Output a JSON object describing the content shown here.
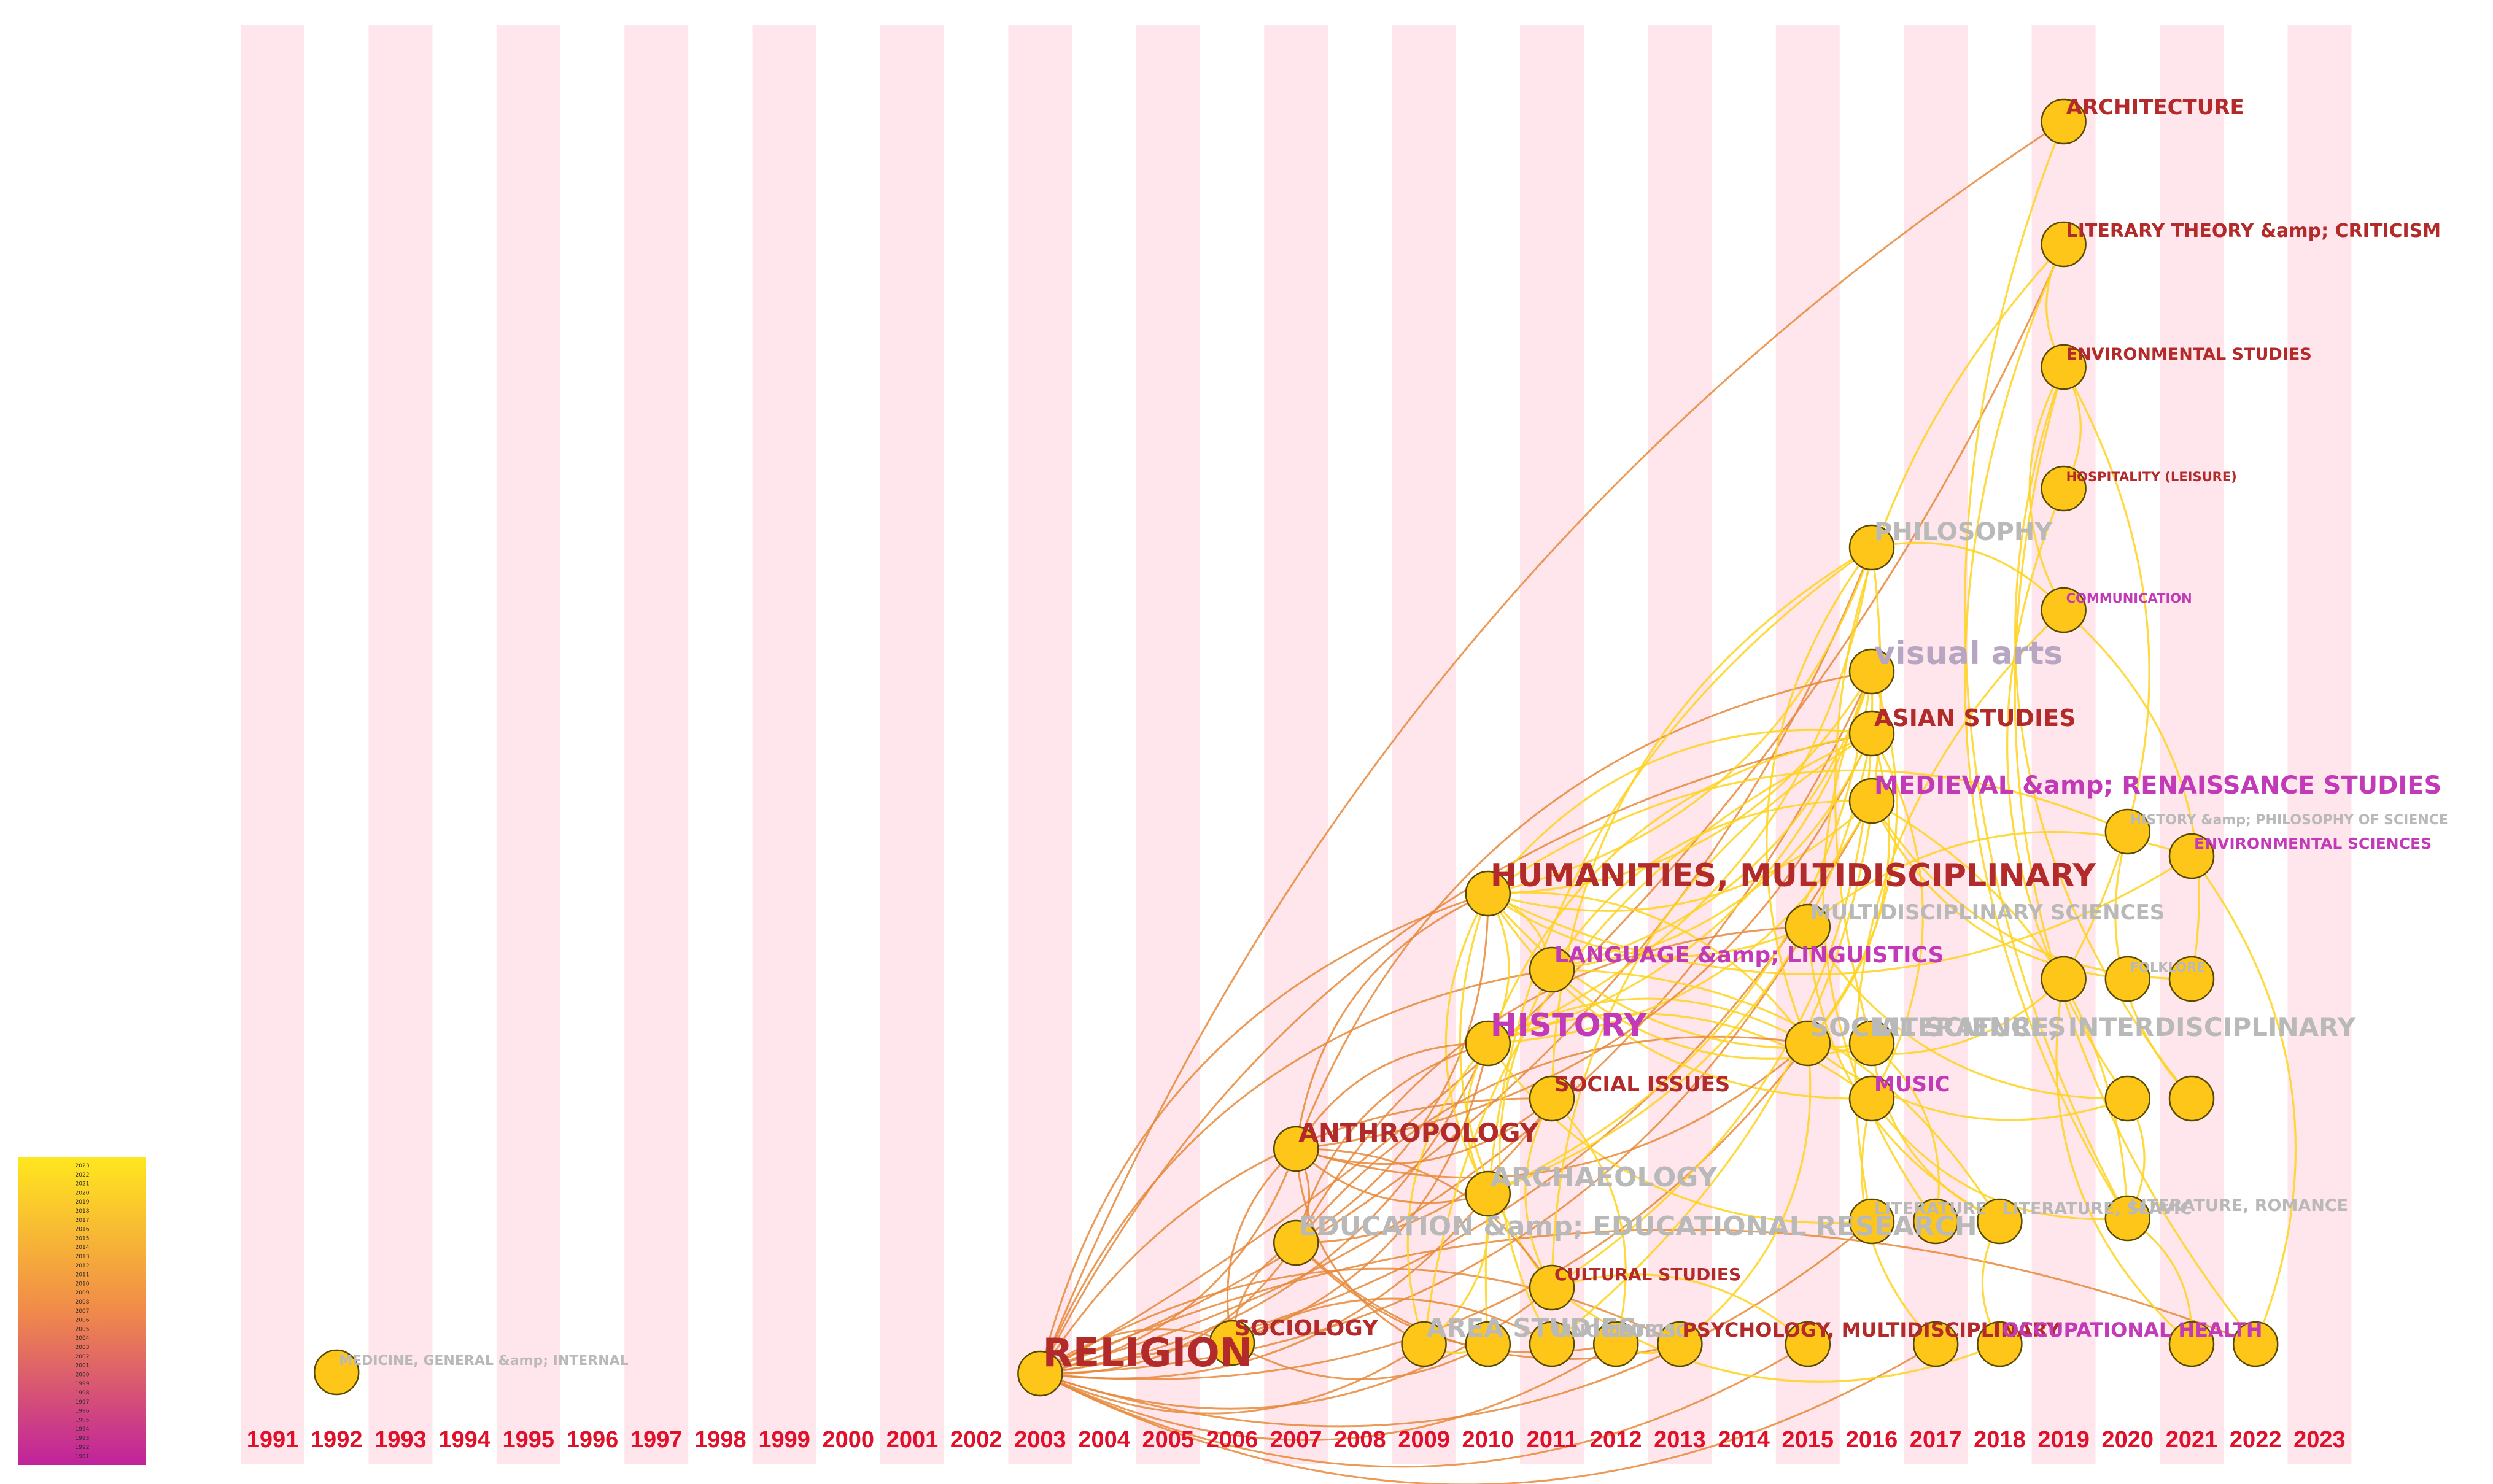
{
  "colors": {
    "stripe": "#ffe6ec",
    "node_fill": "#ffc61a",
    "node_stroke": "#5a4a00",
    "edge_recent": "#ffd21e",
    "edge_old": "#e8883a",
    "label_red": "#b22a2a",
    "label_magenta": "#c23ab8",
    "label_gray": "#b9b9b9",
    "label_mauve": "#b7a6c2",
    "year_label": "#e0102a",
    "legend_top": "#ffe71e",
    "legend_mid": "#f08a4a",
    "legend_bottom": "#c0229c"
  },
  "years": [
    "1991",
    "1992",
    "1993",
    "1994",
    "1995",
    "1996",
    "1997",
    "1998",
    "1999",
    "2000",
    "2001",
    "2002",
    "2003",
    "2004",
    "2005",
    "2006",
    "2007",
    "2008",
    "2009",
    "2010",
    "2011",
    "2012",
    "2013",
    "2014",
    "2015",
    "2016",
    "2017",
    "2018",
    "2019",
    "2020",
    "2021",
    "2022",
    "2023"
  ],
  "legend": {
    "labels": [
      "2023",
      "2022",
      "2021",
      "2020",
      "2019",
      "2018",
      "2017",
      "2016",
      "2015",
      "2014",
      "2013",
      "2012",
      "2011",
      "2010",
      "2009",
      "2008",
      "2007",
      "2006",
      "2005",
      "2004",
      "2003",
      "2002",
      "2001",
      "2000",
      "1999",
      "1998",
      "1997",
      "1996",
      "1995",
      "1994",
      "1993",
      "1992",
      "1991"
    ]
  },
  "nodes": [
    {
      "id": "architecture",
      "year": 2019,
      "label": "ARCHITECTURE",
      "color": "red",
      "size": 36
    },
    {
      "id": "literary-theory",
      "year": 2019,
      "label": "LITERARY THEORY &amp; CRITICISM",
      "color": "red",
      "size": 32
    },
    {
      "id": "environmental-studies",
      "year": 2019,
      "label": "ENVIRONMENTAL STUDIES",
      "color": "red",
      "size": 28
    },
    {
      "id": "hospitality",
      "year": 2019,
      "label": "HOSPITALITY (LEISURE)",
      "color": "red",
      "size": 22
    },
    {
      "id": "philosophy",
      "year": 2016,
      "label": "PHILOSOPHY",
      "color": "gray",
      "size": 42
    },
    {
      "id": "communication",
      "year": 2019,
      "label": "COMMUNICATION",
      "color": "magenta",
      "size": 22
    },
    {
      "id": "visual-arts",
      "year": 2016,
      "label": "visual arts",
      "color": "mauve",
      "size": 56
    },
    {
      "id": "asian-studies",
      "year": 2016,
      "label": "ASIAN STUDIES",
      "color": "red",
      "size": 40
    },
    {
      "id": "medieval",
      "year": 2016,
      "label": "MEDIEVAL &amp; RENAISSANCE STUDIES",
      "color": "magenta",
      "size": 42
    },
    {
      "id": "history-philosophy-science",
      "year": 2020,
      "label": "HISTORY &amp; PHILOSOPHY OF SCIENCE",
      "color": "gray",
      "size": 24
    },
    {
      "id": "environmental-sciences",
      "year": 2021,
      "label": "ENVIRONMENTAL SCIENCES",
      "color": "magenta",
      "size": 26
    },
    {
      "id": "humanities",
      "year": 2010,
      "label": "HUMANITIES, MULTIDISCIPLINARY",
      "color": "red",
      "size": 56
    },
    {
      "id": "multidisciplinary-sciences",
      "year": 2015,
      "label": "MULTIDISCIPLINARY SCIENCES",
      "color": "gray",
      "size": 36
    },
    {
      "id": "language-linguistics",
      "year": 2011,
      "label": "LANGUAGE &amp; LINGUISTICS",
      "color": "magenta",
      "size": 38
    },
    {
      "id": "n-2019-a",
      "year": 2019,
      "label": "",
      "color": "gray",
      "size": 0
    },
    {
      "id": "folklore",
      "year": 2020,
      "label": "FOLKLORE",
      "color": "gray",
      "size": 22
    },
    {
      "id": "n-2021-a",
      "year": 2021,
      "label": "",
      "color": "gray",
      "size": 0
    },
    {
      "id": "history",
      "year": 2010,
      "label": "HISTORY",
      "color": "magenta",
      "size": 56
    },
    {
      "id": "social-sciences",
      "year": 2015,
      "label": "SOCIAL SCIENCES",
      "color": "gray",
      "size": 44
    },
    {
      "id": "literature-interdisciplinary",
      "year": 2016,
      "label": "LITERATURE, INTERDISCIPLINARY",
      "color": "gray",
      "size": 44
    },
    {
      "id": "social-issues",
      "year": 2011,
      "label": "SOCIAL ISSUES",
      "color": "red",
      "size": 36
    },
    {
      "id": "music",
      "year": 2016,
      "label": "MUSIC",
      "color": "magenta",
      "size": 36
    },
    {
      "id": "n-2020-b",
      "year": 2020,
      "label": "",
      "color": "gray",
      "size": 0
    },
    {
      "id": "n-2021-b",
      "year": 2021,
      "label": "",
      "color": "gray",
      "size": 0
    },
    {
      "id": "anthropology",
      "year": 2007,
      "label": "ANTHROPOLOGY",
      "color": "red",
      "size": 44
    },
    {
      "id": "archaeology",
      "year": 2010,
      "label": "ARCHAEOLOGY",
      "color": "gray",
      "size": 46
    },
    {
      "id": "education",
      "year": 2007,
      "label": "EDUCATION &amp; EDUCATIONAL RESEARCH",
      "color": "gray",
      "size": 46
    },
    {
      "id": "literature",
      "year": 2016,
      "label": "LITERATURE",
      "color": "gray",
      "size": 28
    },
    {
      "id": "n-2017-c",
      "year": 2017,
      "label": "",
      "color": "gray",
      "size": 0
    },
    {
      "id": "literature-slavic",
      "year": 2018,
      "label": "LITERATURE, SLAVIC",
      "color": "gray",
      "size": 28
    },
    {
      "id": "literature-romance",
      "year": 2020,
      "label": "LITERATURE, ROMANCE",
      "color": "gray",
      "size": 28
    },
    {
      "id": "cultural-studies",
      "year": 2011,
      "label": "CULTURAL STUDIES",
      "color": "red",
      "size": 30
    },
    {
      "id": "sociology",
      "year": 2006,
      "label": "SOCIOLOGY",
      "color": "red",
      "size": 38
    },
    {
      "id": "area-studies",
      "year": 2009,
      "label": "AREA STUDIES",
      "color": "gray",
      "size": 44
    },
    {
      "id": "n-2010-d",
      "year": 2010,
      "label": "",
      "color": "gray",
      "size": 0
    },
    {
      "id": "linguistics",
      "year": 2011,
      "label": "LINGUISTICS",
      "color": "gray",
      "size": 30
    },
    {
      "id": "public",
      "year": 2012,
      "label": "PUBLIC",
      "color": "gray",
      "size": 30
    },
    {
      "id": "psychology-multidisciplinary",
      "year": 2013,
      "label": "PSYCHOLOGY, MULTIDISCIPLINARY",
      "color": "red",
      "size": 34
    },
    {
      "id": "n-2015-d",
      "year": 2015,
      "label": "",
      "color": "gray",
      "size": 0
    },
    {
      "id": "n-2017-d",
      "year": 2017,
      "label": "",
      "color": "gray",
      "size": 0
    },
    {
      "id": "occupational-health",
      "year": 2018,
      "label": "OCCUPATIONAL HEALTH",
      "color": "magenta",
      "size": 34
    },
    {
      "id": "n-2021-d",
      "year": 2021,
      "label": "",
      "color": "gray",
      "size": 0
    },
    {
      "id": "n-2022-d",
      "year": 2022,
      "label": "",
      "color": "gray",
      "size": 0
    },
    {
      "id": "medicine-general",
      "year": 1992,
      "label": "MEDICINE, GENERAL &amp; INTERNAL",
      "color": "gray",
      "size": 24
    },
    {
      "id": "religion",
      "year": 2003,
      "label": "RELIGION",
      "color": "red",
      "size": 64
    }
  ],
  "edges": [
    [
      "religion",
      "architecture"
    ],
    [
      "religion",
      "literary-theory"
    ],
    [
      "religion",
      "philosophy"
    ],
    [
      "religion",
      "humanities"
    ],
    [
      "religion",
      "history"
    ],
    [
      "religion",
      "anthropology"
    ],
    [
      "religion",
      "sociology"
    ],
    [
      "religion",
      "education"
    ],
    [
      "religion",
      "archaeology"
    ],
    [
      "religion",
      "asian-studies"
    ],
    [
      "religion",
      "visual-arts"
    ],
    [
      "religion",
      "social-sciences"
    ],
    [
      "religion",
      "language-linguistics"
    ],
    [
      "religion",
      "cultural-studies"
    ],
    [
      "religion",
      "area-studies"
    ],
    [
      "religion",
      "psychology-multidisciplinary"
    ],
    [
      "religion",
      "multidisciplinary-sciences"
    ],
    [
      "religion",
      "medieval"
    ],
    [
      "religion",
      "n-2022-d"
    ],
    [
      "religion",
      "n-2017-d"
    ],
    [
      "religion",
      "literature"
    ],
    [
      "religion",
      "social-issues"
    ],
    [
      "religion",
      "n-2015-d"
    ],
    [
      "religion",
      "public"
    ],
    [
      "humanities",
      "history"
    ],
    [
      "humanities",
      "philosophy"
    ],
    [
      "humanities",
      "visual-arts"
    ],
    [
      "humanities",
      "asian-studies"
    ],
    [
      "humanities",
      "medieval"
    ],
    [
      "humanities",
      "literature-interdisciplinary"
    ],
    [
      "humanities",
      "language-linguistics"
    ],
    [
      "humanities",
      "anthropology"
    ],
    [
      "humanities",
      "archaeology"
    ],
    [
      "humanities",
      "social-sciences"
    ],
    [
      "humanities",
      "music"
    ],
    [
      "humanities",
      "multidisciplinary-sciences"
    ],
    [
      "humanities",
      "education"
    ],
    [
      "humanities",
      "cultural-studies"
    ],
    [
      "humanities",
      "environmental-sciences"
    ],
    [
      "humanities",
      "history-philosophy-science"
    ],
    [
      "history",
      "anthropology"
    ],
    [
      "history",
      "archaeology"
    ],
    [
      "history",
      "asian-studies"
    ],
    [
      "history",
      "visual-arts"
    ],
    [
      "history",
      "philosophy"
    ],
    [
      "history",
      "social-sciences"
    ],
    [
      "history",
      "medieval"
    ],
    [
      "history",
      "education"
    ],
    [
      "history",
      "sociology"
    ],
    [
      "history",
      "area-studies"
    ],
    [
      "history",
      "literature"
    ],
    [
      "history",
      "music"
    ],
    [
      "anthropology",
      "archaeology"
    ],
    [
      "anthropology",
      "sociology"
    ],
    [
      "anthropology",
      "education"
    ],
    [
      "anthropology",
      "social-issues"
    ],
    [
      "anthropology",
      "asian-studies"
    ],
    [
      "anthropology",
      "cultural-studies"
    ],
    [
      "anthropology",
      "social-sciences"
    ],
    [
      "anthropology",
      "area-studies"
    ],
    [
      "anthropology",
      "visual-arts"
    ],
    [
      "education",
      "sociology"
    ],
    [
      "education",
      "social-issues"
    ],
    [
      "education",
      "social-sciences"
    ],
    [
      "education",
      "psychology-multidisciplinary"
    ],
    [
      "education",
      "public"
    ],
    [
      "education",
      "multidisciplinary-sciences"
    ],
    [
      "archaeology",
      "asian-studies"
    ],
    [
      "archaeology",
      "visual-arts"
    ],
    [
      "archaeology",
      "area-studies"
    ],
    [
      "social-sciences",
      "asian-studies"
    ],
    [
      "social-sciences",
      "visual-arts"
    ],
    [
      "social-sciences",
      "philosophy"
    ],
    [
      "social-sciences",
      "n-2019-a"
    ],
    [
      "social-sciences",
      "n-2020-b"
    ],
    [
      "social-sciences",
      "psychology-multidisciplinary"
    ],
    [
      "language-linguistics",
      "linguistics"
    ],
    [
      "language-linguistics",
      "literature-interdisciplinary"
    ],
    [
      "language-linguistics",
      "literature-slavic"
    ],
    [
      "language-linguistics",
      "visual-arts"
    ],
    [
      "language-linguistics",
      "asian-studies"
    ],
    [
      "language-linguistics",
      "medieval"
    ],
    [
      "literary-theory",
      "literature-interdisciplinary"
    ],
    [
      "literary-theory",
      "literature-romance"
    ],
    [
      "environmental-studies",
      "n-2019-a"
    ],
    [
      "environmental-studies",
      "n-2021-b"
    ],
    [
      "environmental-studies",
      "n-2022-d"
    ],
    [
      "environmental-studies",
      "hospitality"
    ],
    [
      "environmental-studies",
      "communication"
    ],
    [
      "hospitality",
      "n-2020-b"
    ],
    [
      "communication",
      "n-2021-a"
    ],
    [
      "communication",
      "literature"
    ],
    [
      "communication",
      "philosophy"
    ],
    [
      "medieval",
      "literature-romance"
    ],
    [
      "medieval",
      "folklore"
    ],
    [
      "medieval",
      "n-2021-a"
    ],
    [
      "asian-studies",
      "music"
    ],
    [
      "asian-studies",
      "cultural-studies"
    ],
    [
      "asian-studies",
      "area-studies"
    ],
    [
      "visual-arts",
      "cultural-studies"
    ],
    [
      "visual-arts",
      "n-2017-c"
    ],
    [
      "philosophy",
      "n-2010-d"
    ],
    [
      "philosophy",
      "linguistics"
    ],
    [
      "philosophy",
      "social-issues"
    ],
    [
      "multidisciplinary-sciences",
      "n-2020-b"
    ],
    [
      "multidisciplinary-sciences",
      "environmental-sciences"
    ],
    [
      "multidisciplinary-sciences",
      "literature-slavic"
    ],
    [
      "literature-interdisciplinary",
      "literature-slavic"
    ],
    [
      "literature-interdisciplinary",
      "n-2017-c"
    ],
    [
      "music",
      "n-2017-d"
    ],
    [
      "music",
      "literature-romance"
    ],
    [
      "social-issues",
      "public"
    ],
    [
      "social-issues",
      "cultural-studies"
    ],
    [
      "cultural-studies",
      "occupational-health"
    ],
    [
      "cultural-studies",
      "n-2015-d"
    ],
    [
      "area-studies",
      "n-2010-d"
    ],
    [
      "public",
      "psychology-multidisciplinary"
    ],
    [
      "literature-romance",
      "n-2021-d"
    ],
    [
      "n-2019-a",
      "n-2021-d"
    ],
    [
      "history-philosophy-science",
      "n-2021-b"
    ],
    [
      "environmental-sciences",
      "n-2022-d"
    ],
    [
      "literature-slavic",
      "occupational-health"
    ],
    [
      "sociology",
      "n-2010-d"
    ],
    [
      "sociology",
      "linguistics"
    ],
    [
      "architecture",
      "literature-romance"
    ],
    [
      "literary-theory",
      "environmental-studies"
    ],
    [
      "n-2020-b",
      "literature-romance"
    ]
  ]
}
